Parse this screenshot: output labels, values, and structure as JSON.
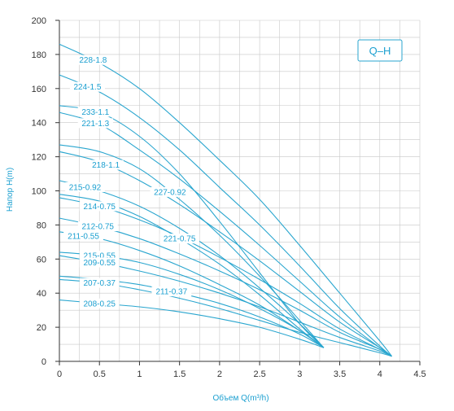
{
  "chart_data": {
    "type": "line",
    "legend_tag": "Q–H",
    "xlabel": "Объем Q(m³/h)",
    "ylabel": "Напор H(m)",
    "xlim": [
      0,
      4.5
    ],
    "ylim": [
      0,
      200
    ],
    "xticks": [
      "0",
      "0.5",
      "1",
      "1.5",
      "2",
      "2.5",
      "3",
      "3.5",
      "4",
      "4.5"
    ],
    "yticks": [
      "0",
      "20",
      "40",
      "60",
      "80",
      "100",
      "120",
      "140",
      "160",
      "180",
      "200"
    ],
    "grid": true,
    "colors": {
      "curve": "#2aa6cf",
      "grid": "#c8c8c8",
      "label": "#1a9fd0",
      "axis": "#333333"
    },
    "series": [
      {
        "name": "228-1.8",
        "x": [
          0,
          0.5,
          1,
          1.5,
          2,
          2.5,
          3,
          3.5,
          4,
          4.15
        ],
        "y": [
          186,
          175,
          160,
          140,
          118,
          95,
          68,
          40,
          12,
          3
        ]
      },
      {
        "name": "224-1.5",
        "x": [
          0,
          0.5,
          1,
          1.5,
          2,
          2.5,
          3,
          3.5,
          4,
          4.15
        ],
        "y": [
          168,
          158,
          143,
          124,
          102,
          80,
          56,
          31,
          9,
          3
        ]
      },
      {
        "name": "233-1.1",
        "x": [
          0,
          0.5,
          1,
          1.5,
          2,
          2.5,
          3,
          3.3
        ],
        "y": [
          150,
          146,
          132,
          110,
          82,
          52,
          22,
          8
        ]
      },
      {
        "name": "221-1.3",
        "x": [
          0,
          0.5,
          1,
          1.5,
          2,
          2.5,
          3,
          3.5,
          4,
          4.15
        ],
        "y": [
          146,
          139,
          124,
          107,
          88,
          68,
          47,
          26,
          8,
          3
        ]
      },
      {
        "name": "227-0.92",
        "x": [
          0,
          0.5,
          1,
          1.5,
          2,
          2.5,
          3,
          3.3
        ],
        "y": [
          127,
          123,
          113,
          95,
          74,
          50,
          24,
          8
        ]
      },
      {
        "name": "218-1.1",
        "x": [
          0,
          0.5,
          1,
          1.5,
          2,
          2.5,
          3,
          3.5,
          4,
          4.15
        ],
        "y": [
          123,
          117,
          106,
          92,
          76,
          59,
          41,
          23,
          8,
          3
        ]
      },
      {
        "name": "215-0.92",
        "x": [
          0,
          0.5,
          1,
          1.5,
          2,
          2.5,
          3,
          3.3
        ],
        "y": [
          106,
          100,
          91,
          78,
          62,
          43,
          22,
          8
        ]
      },
      {
        "name": "221-0.75",
        "x": [
          0,
          0.5,
          1,
          1.5,
          2,
          2.5,
          3,
          3.3
        ],
        "y": [
          98,
          94,
          85,
          72,
          57,
          39,
          19,
          8
        ]
      },
      {
        "name": "214-0.75",
        "x": [
          0,
          0.5,
          1,
          1.5,
          2,
          2.5,
          3,
          3.5,
          4,
          4.15
        ],
        "y": [
          96,
          91,
          83,
          73,
          61,
          48,
          34,
          19,
          7,
          3
        ]
      },
      {
        "name": "212-0.75",
        "x": [
          0,
          0.5,
          1,
          1.5,
          2,
          2.5,
          3,
          3.5,
          4,
          4.15
        ],
        "y": [
          84,
          79,
          72,
          63,
          53,
          42,
          30,
          17,
          7,
          3
        ]
      },
      {
        "name": "211-0.55",
        "x": [
          0,
          0.5,
          1,
          1.5,
          2,
          2.5,
          3,
          3.3
        ],
        "y": [
          76,
          72,
          65,
          56,
          45,
          33,
          18,
          8
        ]
      },
      {
        "name": "215-0.55",
        "x": [
          0,
          0.5,
          1,
          1.5,
          2,
          2.5,
          3,
          3.3
        ],
        "y": [
          64,
          62,
          58,
          51,
          42,
          31,
          18,
          8
        ]
      },
      {
        "name": "209-0.55",
        "x": [
          0,
          0.5,
          1,
          1.5,
          2,
          2.5,
          3,
          3.5,
          4,
          4.15
        ],
        "y": [
          62,
          58,
          53,
          47,
          40,
          32,
          23,
          14,
          6,
          3
        ]
      },
      {
        "name": "211-0.37",
        "x": [
          0,
          0.5,
          1,
          1.5,
          2,
          2.5,
          3,
          3.3
        ],
        "y": [
          50,
          48,
          45,
          40,
          34,
          26,
          16,
          8
        ]
      },
      {
        "name": "207-0.37",
        "x": [
          0,
          0.5,
          1,
          1.5,
          2,
          2.5,
          3,
          3.5,
          4,
          4.15
        ],
        "y": [
          48,
          46,
          42,
          37,
          31,
          24,
          17,
          11,
          5,
          3
        ]
      },
      {
        "name": "208-0.25",
        "x": [
          0,
          0.5,
          1,
          1.5,
          2,
          2.5,
          3,
          3.3
        ],
        "y": [
          36,
          34,
          32,
          29,
          25,
          20,
          13,
          8
        ]
      }
    ]
  }
}
